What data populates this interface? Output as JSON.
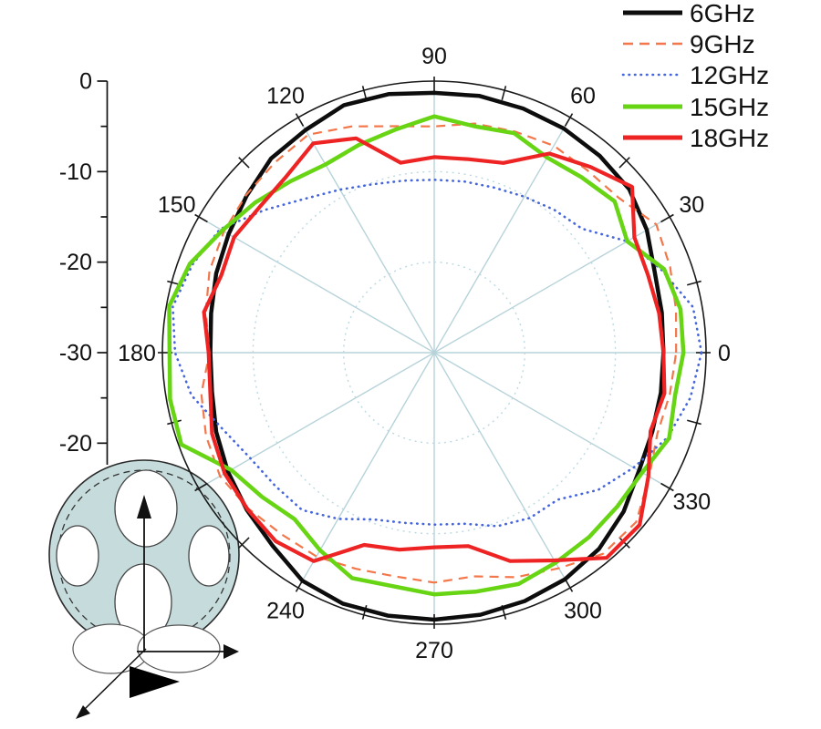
{
  "figure": {
    "background": "#ffffff",
    "text_color": "#111111"
  },
  "chart_data": {
    "type": "line",
    "projection": "polar",
    "units": "dB",
    "title": "",
    "angle_step_deg": 10,
    "radial_axis": {
      "range_dB": [
        0,
        -30
      ],
      "tick_step_dB": 5,
      "labels": [
        {
          "offset_dB": 0,
          "text": "0"
        },
        {
          "offset_dB": 10,
          "text": "-10"
        },
        {
          "offset_dB": 20,
          "text": "-20"
        },
        {
          "offset_dB": 30,
          "text": "-30"
        },
        {
          "offset_dB": 40,
          "text": "-20"
        }
      ]
    },
    "angular_axis": {
      "tick_every_deg": 15,
      "spoke_every_deg": 30,
      "labels": [
        {
          "deg": 0,
          "text": "0"
        },
        {
          "deg": 30,
          "text": "30"
        },
        {
          "deg": 60,
          "text": "60"
        },
        {
          "deg": 90,
          "text": "90"
        },
        {
          "deg": 120,
          "text": "120"
        },
        {
          "deg": 150,
          "text": "150"
        },
        {
          "deg": 180,
          "text": "180"
        },
        {
          "deg": 240,
          "text": "240"
        },
        {
          "deg": 270,
          "text": "270"
        },
        {
          "deg": 300,
          "text": "300"
        },
        {
          "deg": 330,
          "text": "330"
        }
      ]
    },
    "grid": {
      "spoke_color": "#b7d3da",
      "circle_color": "#bcd9e2",
      "radial_circles_dB": [
        -10,
        -20
      ],
      "outline_color": "#1a1a1a"
    },
    "legend": {
      "position": "top-right",
      "entries": [
        "6GHz",
        "9GHz",
        "12GHz",
        "15GHz",
        "18GHz"
      ]
    },
    "series": [
      {
        "name": "6GHz",
        "color": "#0d0d0d",
        "style": "solid",
        "width": 4.5,
        "values": [
          -4.7,
          -4.5,
          -4.1,
          -2.9,
          -1.9,
          -1.6,
          -1.4,
          -1.3,
          -1.2,
          -1.3,
          -1.0,
          -0.9,
          -1.6,
          -2.0,
          -3.0,
          -3.8,
          -4.4,
          -5.0,
          -5.3,
          -5.1,
          -4.4,
          -3.7,
          -3.0,
          -2.2,
          -0.9,
          -0.5,
          -0.5,
          -0.5,
          -0.6,
          -0.8,
          -1.1,
          -1.7,
          -2.7,
          -3.9,
          -4.4,
          -4.6
        ]
      },
      {
        "name": "9GHz",
        "color": "#f3774a",
        "style": "dashed",
        "width": 2.2,
        "values": [
          -3.3,
          -2.9,
          -2.3,
          -1.7,
          -3.4,
          -3.7,
          -3.6,
          -4.0,
          -4.3,
          -5.0,
          -4.6,
          -3.4,
          -2.2,
          -2.6,
          -2.9,
          -3.2,
          -3.6,
          -4.4,
          -5.2,
          -3.9,
          -3.2,
          -2.7,
          -3.2,
          -3.8,
          -4.0,
          -4.6,
          -4.9,
          -4.6,
          -4.9,
          -3.6,
          -2.5,
          -1.0,
          -0.9,
          -2.6,
          -3.8,
          -3.6
        ]
      },
      {
        "name": "12GHz",
        "color": "#4565dd",
        "style": "dotted",
        "width": 2.6,
        "values": [
          -0.5,
          -1.0,
          -3.3,
          -5.4,
          -8.7,
          -9.4,
          -10.1,
          -10.6,
          -10.8,
          -10.9,
          -10.7,
          -10.2,
          -9.2,
          -7.8,
          -5.5,
          -2.7,
          -1.6,
          -0.7,
          -1.4,
          -2.8,
          -5.2,
          -6.6,
          -7.1,
          -7.3,
          -8.8,
          -10.4,
          -10.9,
          -11.0,
          -10.8,
          -9.6,
          -8.9,
          -8.8,
          -6.4,
          -4.6,
          -2.6,
          -1.3
        ]
      },
      {
        "name": "15GHz",
        "color": "#67d513",
        "style": "solid",
        "width": 4.5,
        "values": [
          -2.5,
          -2.4,
          -3.0,
          -5.4,
          -4.0,
          -4.7,
          -5.1,
          -4.2,
          -4.6,
          -3.9,
          -5.0,
          -5.6,
          -6.0,
          -5.3,
          -4.2,
          -3.0,
          -1.3,
          -0.3,
          -0.8,
          -0.4,
          -0.3,
          -4.1,
          -5.2,
          -6.0,
          -4.8,
          -3.5,
          -3.8,
          -3.3,
          -3.2,
          -2.8,
          -3.2,
          -3.4,
          -3.6,
          -3.5,
          -2.4,
          -3.0
        ]
      },
      {
        "name": "18GHz",
        "color": "#ee2424",
        "style": "solid",
        "width": 4.2,
        "values": [
          -4.7,
          -4.8,
          -4.9,
          -4.5,
          -1.5,
          -3.2,
          -4.6,
          -7.7,
          -8.3,
          -8.4,
          -8.7,
          -4.8,
          -3.3,
          -4.6,
          -4.9,
          -4.5,
          -5.0,
          -4.2,
          -5.1,
          -4.9,
          -3.9,
          -3.3,
          -3.1,
          -2.8,
          -3.4,
          -7.4,
          -7.9,
          -8.5,
          -8.3,
          -5.5,
          -3.5,
          -0.4,
          -0.4,
          -2.7,
          -4.6,
          -4.2
        ]
      }
    ]
  },
  "inset": {
    "fill": "#c6dbdb",
    "outline": "#2a2a2a",
    "hole_fill": "#ffffff"
  }
}
